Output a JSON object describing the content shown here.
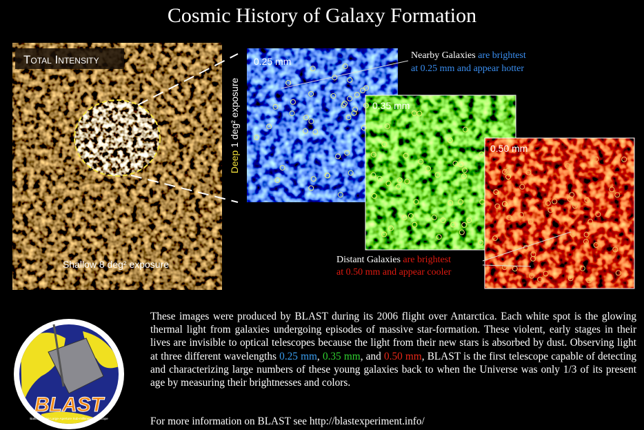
{
  "title": "Cosmic History of Galaxy Formation",
  "overview": {
    "label": "Total Intensity",
    "caption": "Shallow 8 deg² exposure"
  },
  "deep": {
    "word": "Deep",
    "rest": "1 deg² exposure"
  },
  "panels": [
    {
      "label": "0.25 mm"
    },
    {
      "label": "0.35 mm"
    },
    {
      "label": "0.50 mm"
    }
  ],
  "nearby": {
    "lead": "Nearby Galaxies",
    "line1": "are brightest",
    "line2": "at 0.25 mm and appear hotter"
  },
  "distant": {
    "lead": "Distant Galaxies",
    "line1": "are brightest",
    "line2": "at 0.50 mm and appear cooler"
  },
  "paragraph": {
    "before": "These images were produced by BLAST during its 2006 flight over Antarctica. Each white spot is the glowing thermal light from galaxies undergoing episodes of massive star-formation. These violent, early stages in their lives are invisible to optical telescopes because the light from their new stars is absorbed by dust.  Observing light at three different wavelengths",
    "w1": "0.25 mm",
    "sep1": ",",
    "w2": "0.35 mm",
    "sep2": ", and",
    "w3": "0.50 mm",
    "after": ", BLAST is the first telescope capable of detecting and characterizing large numbers of these young galaxies back to when the Universe was only 1/3 of its present age by measuring their brightnesses and colors."
  },
  "more_info": "For more information on BLAST see http://blastexperiment.info/",
  "logo": {
    "name": "BLAST",
    "tagline": "Balloon-borne Large-Aperture Sub-millimeter Telescope"
  }
}
